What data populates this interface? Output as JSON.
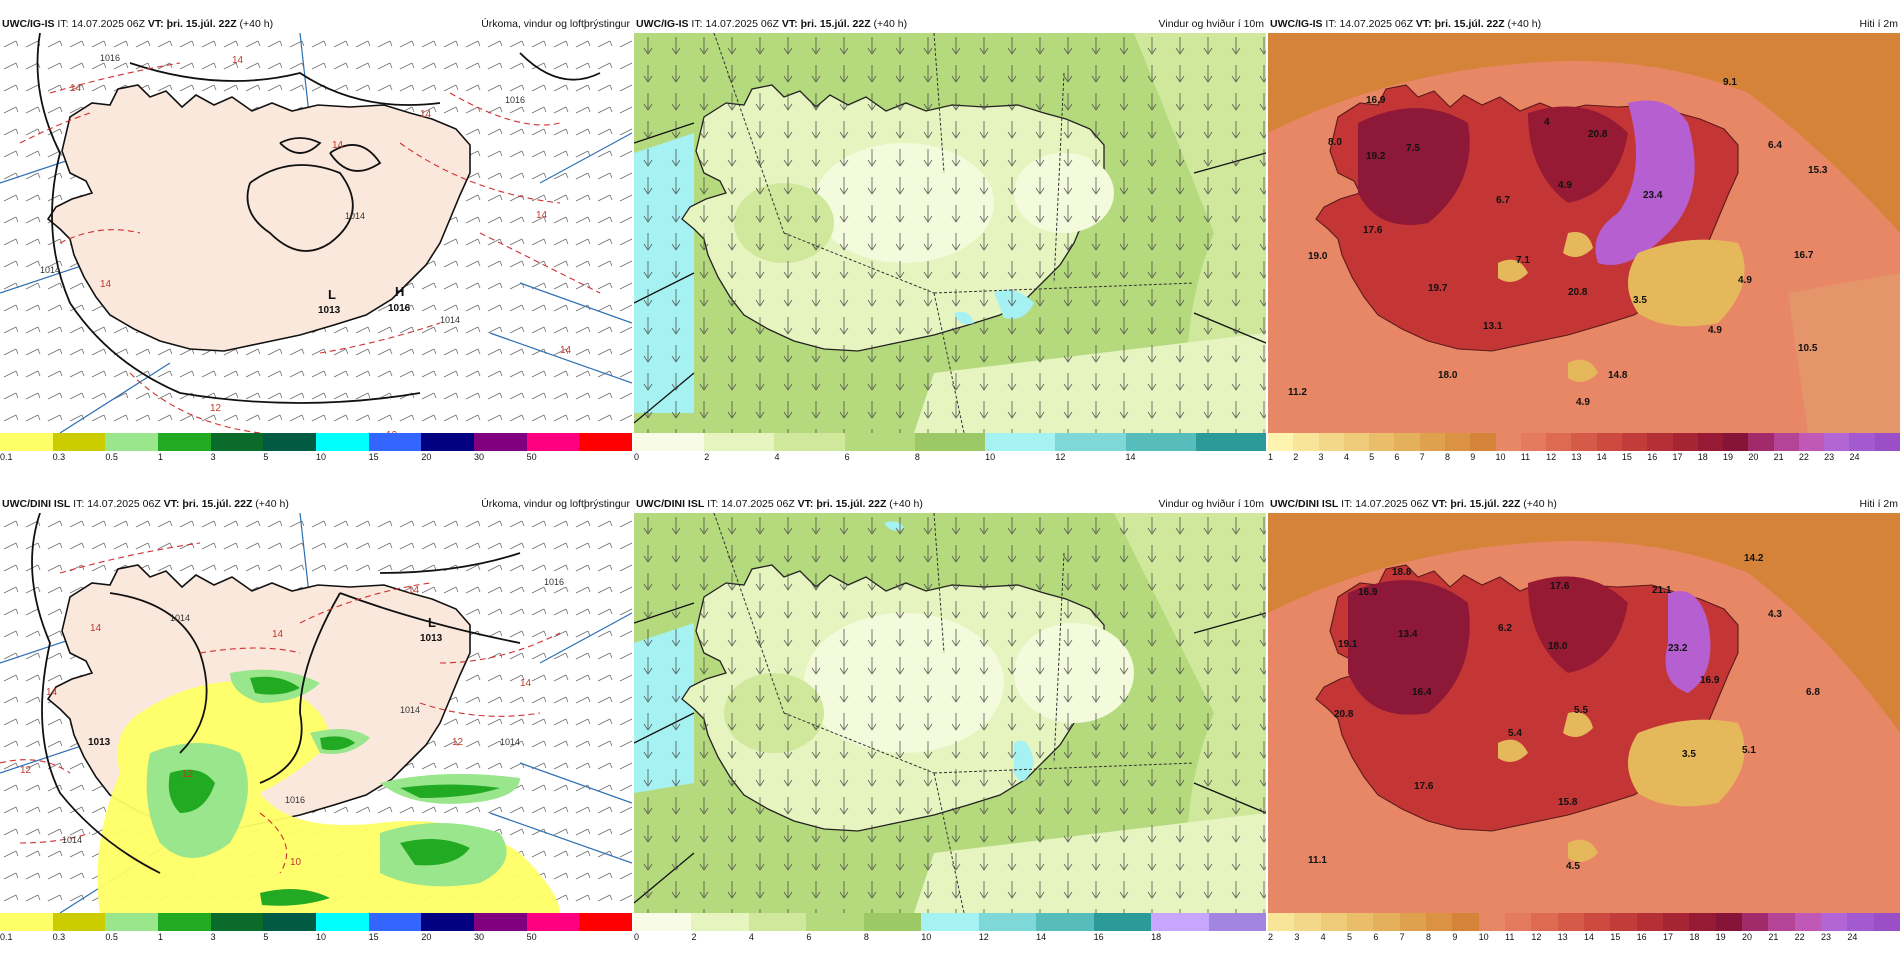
{
  "colors": {
    "land_pressure": "#fbe8dc",
    "precip_light": "#ffff66",
    "precip_mid": "#99e68c",
    "precip_heavy": "#2aa02a",
    "wind_light": "#f4fbdc",
    "wind_mid": "#cfe89c",
    "wind_dark": "#9cc865",
    "wind_cyan": "#a6f2f2",
    "temp_sea": "#e88766",
    "temp_coast": "#d8683a",
    "temp_warm": "#c43535",
    "temp_hot": "#8e1838",
    "temp_purple": "#b65fd0",
    "temp_cool": "#e5b95b",
    "graticule_blue": "#2f6fb2",
    "isobar_red": "#d03030"
  },
  "panels": [
    {
      "model": "UWC/IG-IS",
      "it_prefix": "IT:",
      "issue_time": "14.07.2025 06Z",
      "vt_prefix": "VT:",
      "valid_time": "þri. 15.júl. 22Z",
      "lead": "(+40 h)",
      "title": "Úrkoma, vindur og loftþrýstingur",
      "pressure_labels": [
        "L",
        "1013",
        "H",
        "1016"
      ],
      "isobar_labels": [
        "1016",
        "1014",
        "1016",
        "1014",
        "1014",
        "1014"
      ],
      "thickness_labels": [
        "14",
        "14",
        "14",
        "14",
        "14",
        "14",
        "12",
        "12",
        "14"
      ],
      "colorbar": {
        "ticks": [
          "0.1",
          "0.3",
          "0.5",
          "1",
          "3",
          "5",
          "10",
          "15",
          "20",
          "30",
          "50"
        ],
        "colors": [
          "#ffff66",
          "#cccc00",
          "#99e68c",
          "#22aa22",
          "#0b6b2b",
          "#005a44",
          "#00ffff",
          "#3366ff",
          "#000080",
          "#800080",
          "#ff0080",
          "#ff0000"
        ]
      }
    },
    {
      "model": "UWC/IG-IS",
      "it_prefix": "IT:",
      "issue_time": "14.07.2025 06Z",
      "vt_prefix": "VT:",
      "valid_time": "þri. 15.júl. 22Z",
      "lead": "(+40 h)",
      "title": "Vindur og hviður í 10m",
      "colorbar": {
        "ticks": [
          "0",
          "2",
          "4",
          "6",
          "8",
          "10",
          "12",
          "14"
        ],
        "colors": [
          "#f8fce6",
          "#e6f4c0",
          "#cfe89c",
          "#b5d97d",
          "#9cc865",
          "#a6f2f2",
          "#7fd8d8",
          "#56bcbc",
          "#2d9a9a"
        ]
      }
    },
    {
      "model": "UWC/IG-IS",
      "it_prefix": "IT:",
      "issue_time": "14.07.2025 06Z",
      "vt_prefix": "VT:",
      "valid_time": "þri. 15.júl. 22Z",
      "lead": "(+40 h)",
      "title": "Hiti í 2m",
      "temp_labels": [
        "16.9",
        "8.0",
        "19.2",
        "7.5",
        "4",
        "20.8",
        "9.1",
        "6.4",
        "15.3",
        "6.7",
        "4.9",
        "23.4",
        "17.6",
        "19.0",
        "7.1",
        "20.8",
        "16.7",
        "3.5",
        "4.9",
        "19.7",
        "13.1",
        "4.9",
        "10.5",
        "18.0",
        "14.8",
        "11.2",
        "4.9"
      ],
      "colorbar": {
        "ticks": [
          "1",
          "2",
          "3",
          "4",
          "5",
          "6",
          "7",
          "8",
          "9",
          "10",
          "11",
          "12",
          "13",
          "14",
          "15",
          "16",
          "17",
          "18",
          "19",
          "20",
          "21",
          "22",
          "23",
          "24"
        ],
        "colors": [
          "#fff3b0",
          "#f9e59a",
          "#f4d88a",
          "#efca79",
          "#eabd6a",
          "#e5b05b",
          "#e0a14e",
          "#db9243",
          "#d6833a",
          "#e88766",
          "#e47a5e",
          "#de6a52",
          "#d65a48",
          "#cc4a40",
          "#c23c3a",
          "#b42f36",
          "#a62434",
          "#961a34",
          "#851438",
          "#a02a6a",
          "#b44496",
          "#c058b8",
          "#b265d4",
          "#a35ad0",
          "#9a4fc8"
        ]
      }
    },
    {
      "model": "UWC/DINI ISL",
      "it_prefix": "IT:",
      "issue_time": "14.07.2025 06Z",
      "vt_prefix": "VT:",
      "valid_time": "þri. 15.júl. 22Z",
      "lead": "(+40 h)",
      "title": "Úrkoma, vindur og loftþrýstingur",
      "pressure_labels": [
        "L",
        "1013",
        "1013"
      ],
      "isobar_labels": [
        "1016",
        "1014",
        "1014",
        "1014",
        "1014",
        "1016"
      ],
      "thickness_labels": [
        "14",
        "14",
        "14",
        "14",
        "14",
        "12",
        "10",
        "12",
        "12"
      ],
      "colorbar": {
        "ticks": [
          "0.1",
          "0.3",
          "0.5",
          "1",
          "3",
          "5",
          "10",
          "15",
          "20",
          "30",
          "50"
        ],
        "colors": [
          "#ffff66",
          "#cccc00",
          "#99e68c",
          "#22aa22",
          "#0b6b2b",
          "#005a44",
          "#00ffff",
          "#3366ff",
          "#000080",
          "#800080",
          "#ff0080",
          "#ff0000"
        ]
      }
    },
    {
      "model": "UWC/DINI ISL",
      "it_prefix": "IT:",
      "issue_time": "14.07.2025 06Z",
      "vt_prefix": "VT:",
      "valid_time": "þri. 15.júl. 22Z",
      "lead": "(+40 h)",
      "title": "Vindur og hviður í 10m",
      "colorbar": {
        "ticks": [
          "0",
          "2",
          "4",
          "6",
          "8",
          "10",
          "12",
          "14",
          "16",
          "18"
        ],
        "colors": [
          "#f8fce6",
          "#e6f4c0",
          "#cfe89c",
          "#b5d97d",
          "#9cc865",
          "#a6f2f2",
          "#7fd8d8",
          "#56bcbc",
          "#2d9a9a",
          "#c7a6ff",
          "#a285e0"
        ]
      }
    },
    {
      "model": "UWC/DINI ISL",
      "it_prefix": "IT:",
      "issue_time": "14.07.2025 06Z",
      "vt_prefix": "VT:",
      "valid_time": "þri. 15.júl. 22Z",
      "lead": "(+40 h)",
      "title": "Hiti í 2m",
      "temp_labels": [
        "16.9",
        "18.8",
        "14.2",
        "17.6",
        "21.1",
        "4.3",
        "6.2",
        "19.1",
        "13.4",
        "18.0",
        "23.2",
        "16.9",
        "6.8",
        "16.4",
        "20.8",
        "5.5",
        "5.4",
        "3.5",
        "5.1",
        "17.6",
        "15.8",
        "11.1",
        "4.5"
      ],
      "colorbar": {
        "ticks": [
          "2",
          "3",
          "4",
          "5",
          "6",
          "7",
          "8",
          "9",
          "10",
          "11",
          "12",
          "13",
          "14",
          "15",
          "16",
          "17",
          "18",
          "19",
          "20",
          "21",
          "22",
          "23",
          "24"
        ],
        "colors": [
          "#f9e59a",
          "#f4d88a",
          "#efca79",
          "#eabd6a",
          "#e5b05b",
          "#e0a14e",
          "#db9243",
          "#d6833a",
          "#e88766",
          "#e47a5e",
          "#de6a52",
          "#d65a48",
          "#cc4a40",
          "#c23c3a",
          "#b42f36",
          "#a62434",
          "#961a34",
          "#851438",
          "#a02a6a",
          "#b44496",
          "#c058b8",
          "#b265d4",
          "#a35ad0",
          "#9a4fc8"
        ]
      }
    }
  ]
}
